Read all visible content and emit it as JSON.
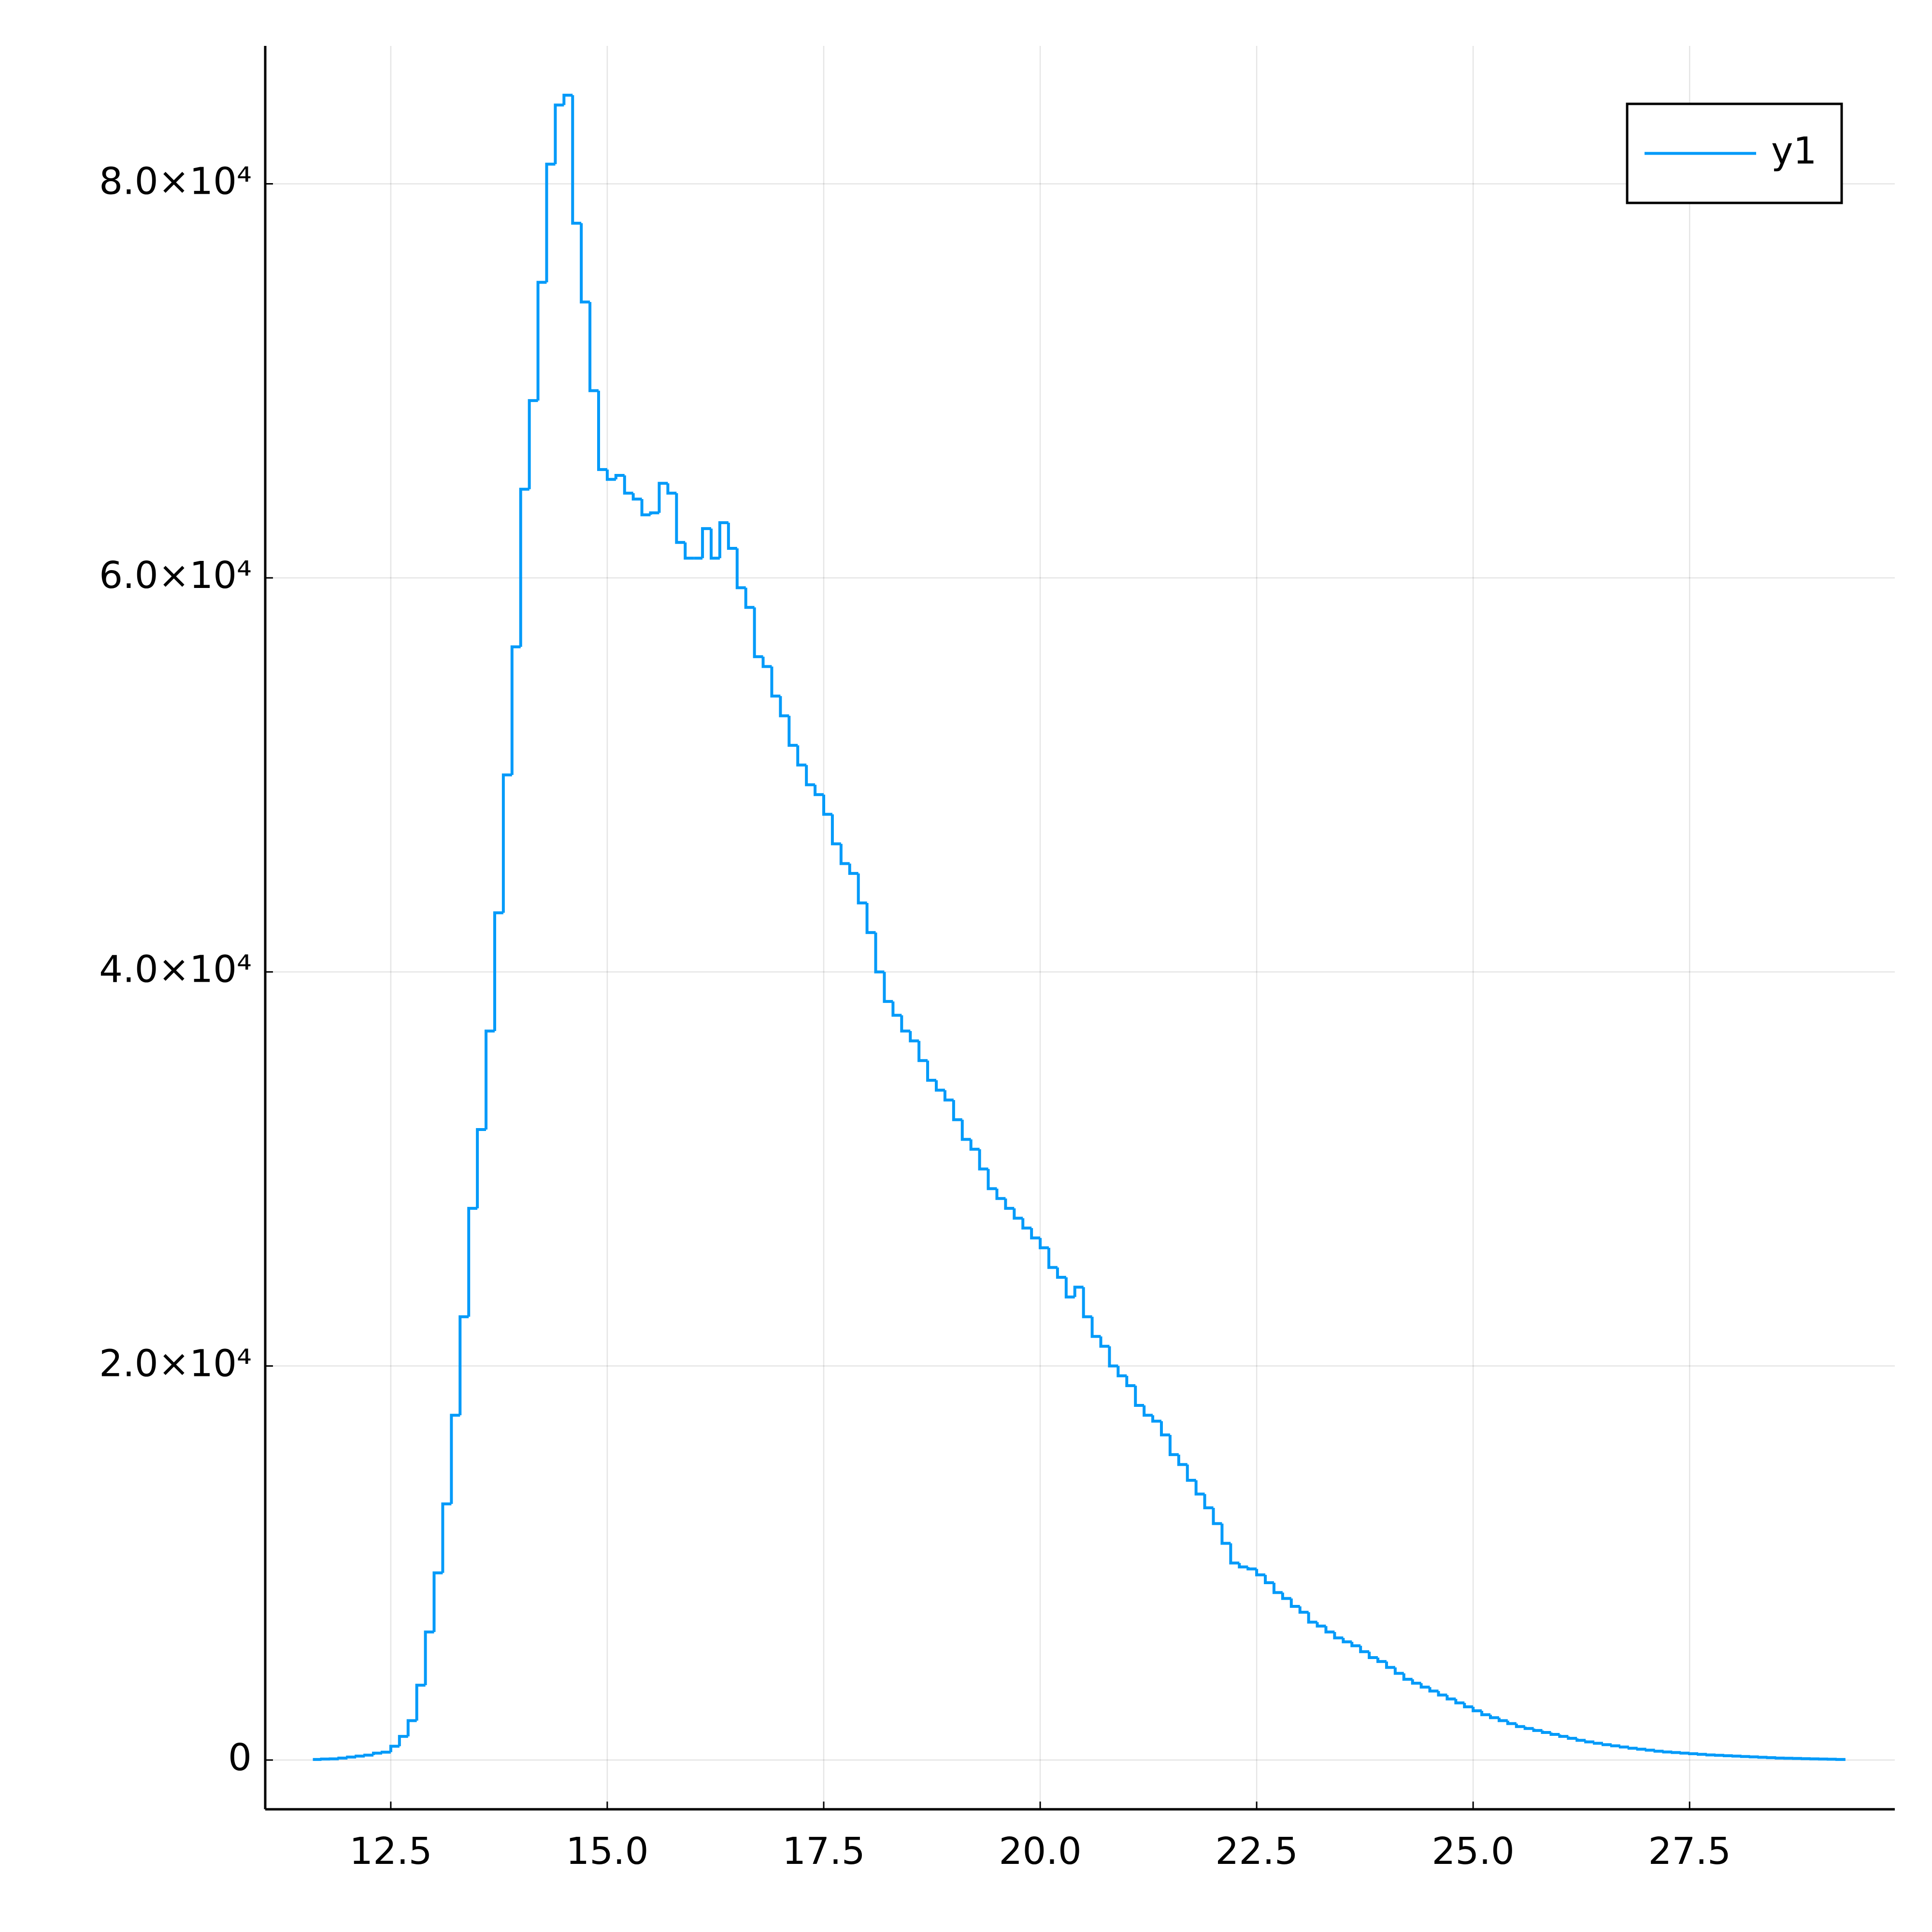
{
  "chart_data": {
    "type": "histogram",
    "bins": [
      11.6,
      11.7,
      11.8,
      11.9,
      12.0,
      12.1,
      12.2,
      12.3,
      12.4,
      12.5,
      12.6,
      12.7,
      12.8,
      12.9,
      13.0,
      13.1,
      13.2,
      13.3,
      13.4,
      13.5,
      13.6,
      13.7,
      13.8,
      13.9,
      14.0,
      14.1,
      14.2,
      14.3,
      14.4,
      14.5,
      14.6,
      14.7,
      14.8,
      14.9,
      15.0,
      15.1,
      15.2,
      15.3,
      15.4,
      15.5,
      15.6,
      15.7,
      15.8,
      15.9,
      16.0,
      16.1,
      16.2,
      16.3,
      16.4,
      16.5,
      16.6,
      16.7,
      16.8,
      16.9,
      17.0,
      17.1,
      17.2,
      17.3,
      17.4,
      17.5,
      17.6,
      17.7,
      17.8,
      17.9,
      18.0,
      18.1,
      18.2,
      18.3,
      18.4,
      18.5,
      18.6,
      18.7,
      18.8,
      18.9,
      19.0,
      19.1,
      19.2,
      19.3,
      19.4,
      19.5,
      19.6,
      19.7,
      19.8,
      19.9,
      20.0,
      20.1,
      20.2,
      20.3,
      20.4,
      20.5,
      20.6,
      20.7,
      20.8,
      20.9,
      21.0,
      21.1,
      21.2,
      21.3,
      21.4,
      21.5,
      21.6,
      21.7,
      21.8,
      21.9,
      22.0,
      22.1,
      22.2,
      22.3,
      22.4,
      22.5,
      22.6,
      22.7,
      22.8,
      22.9,
      23.0,
      23.1,
      23.2,
      23.3,
      23.4,
      23.5,
      23.6,
      23.7,
      23.8,
      23.9,
      24.0,
      24.1,
      24.2,
      24.3,
      24.4,
      24.5,
      24.6,
      24.7,
      24.8,
      24.9,
      25.0,
      25.1,
      25.2,
      25.3,
      25.4,
      25.5,
      25.6,
      25.7,
      25.8,
      25.9,
      26.0,
      26.1,
      26.2,
      26.3,
      26.4,
      26.5,
      26.6,
      26.7,
      26.8,
      26.9,
      27.0,
      27.1,
      27.2,
      27.3,
      27.4,
      27.5,
      27.6,
      27.7,
      27.8,
      27.9,
      28.0,
      28.1,
      28.2,
      28.3,
      28.4,
      28.5,
      28.6,
      28.7,
      28.8,
      28.9,
      29.0,
      29.1,
      29.2,
      29.3
    ],
    "series": [
      {
        "name": "y1",
        "color": "#009af9",
        "values": [
          30,
          50,
          60,
          100,
          150,
          200,
          250,
          350,
          400,
          700,
          1200,
          2000,
          3800,
          6500,
          9500,
          13000,
          17500,
          22500,
          28000,
          32000,
          37000,
          43000,
          50000,
          56500,
          64500,
          69000,
          75000,
          81000,
          84000,
          84500,
          78000,
          74000,
          69500,
          65500,
          65000,
          65200,
          64300,
          64000,
          63200,
          63300,
          64800,
          64300,
          61800,
          61000,
          61000,
          62500,
          61000,
          62800,
          61500,
          59500,
          58500,
          56000,
          55500,
          54000,
          53000,
          51500,
          50500,
          49500,
          49000,
          48000,
          46500,
          45500,
          45000,
          43500,
          42000,
          40000,
          38500,
          37800,
          37000,
          36500,
          35500,
          34500,
          34000,
          33500,
          32500,
          31500,
          31000,
          30000,
          29000,
          28500,
          28000,
          27500,
          27000,
          26500,
          26000,
          25000,
          24500,
          23500,
          24000,
          22500,
          21500,
          21000,
          20000,
          19500,
          19000,
          18000,
          17500,
          17200,
          16500,
          15500,
          15000,
          14200,
          13500,
          12800,
          12000,
          11000,
          10000,
          9800,
          9700,
          9400,
          9000,
          8500,
          8200,
          7800,
          7500,
          7000,
          6800,
          6500,
          6200,
          6000,
          5800,
          5500,
          5200,
          5000,
          4700,
          4400,
          4100,
          3900,
          3700,
          3500,
          3300,
          3100,
          2900,
          2700,
          2500,
          2300,
          2150,
          2000,
          1850,
          1700,
          1600,
          1500,
          1400,
          1300,
          1200,
          1100,
          1000,
          920,
          850,
          780,
          720,
          660,
          600,
          550,
          500,
          450,
          410,
          380,
          350,
          320,
          290,
          260,
          240,
          220,
          200,
          180,
          160,
          140,
          120,
          100,
          90,
          80,
          70,
          60,
          50,
          40,
          30
        ]
      }
    ],
    "xlim": [
      11.05,
      29.87
    ],
    "xticks": [
      12.5,
      {
        "value": 15,
        "label": "15.0"
      },
      17.5,
      {
        "value": 20,
        "label": "20.0"
      },
      22.5,
      {
        "value": 25,
        "label": "25.0"
      },
      27.5
    ],
    "ylim": [
      -2500,
      87000
    ],
    "yticks": [
      0,
      {
        "value": 20000,
        "label": "2.0×10⁴"
      },
      {
        "value": 40000,
        "label": "4.0×10⁴"
      },
      {
        "value": 60000,
        "label": "6.0×10⁴"
      },
      {
        "value": 80000,
        "label": "8.0×10⁴"
      }
    ],
    "grid": true,
    "legend": "top-right"
  }
}
